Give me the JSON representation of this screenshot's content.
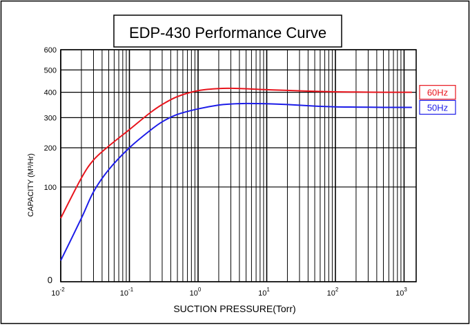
{
  "chart_data": {
    "type": "line",
    "title": "EDP-430 Performance Curve",
    "xlabel": "SUCTION PRESSURE(Torr)",
    "ylabel": "CAPACITY (M³/Hr)",
    "x_scale": "log",
    "xlim": [
      0.01,
      1500
    ],
    "ylim": [
      0,
      600
    ],
    "grid": true,
    "x_ticks": [
      {
        "base": "10",
        "exp": "-2"
      },
      {
        "base": "10",
        "exp": "-1"
      },
      {
        "base": "10",
        "exp": "0"
      },
      {
        "base": "10",
        "exp": "1"
      },
      {
        "base": "10",
        "exp": "2"
      },
      {
        "base": "10",
        "exp": "3"
      }
    ],
    "y_ticks": [
      "0",
      "100",
      "200",
      "300",
      "400",
      "500",
      "600"
    ],
    "series": [
      {
        "name": "60Hz",
        "color": "#e8141c",
        "x": [
          0.01,
          0.02,
          0.03,
          0.05,
          0.1,
          0.2,
          0.3,
          0.5,
          1,
          2,
          3,
          5,
          10,
          20,
          50,
          100,
          200,
          500,
          1000,
          1300
        ],
        "y": [
          45,
          120,
          165,
          205,
          258,
          318,
          350,
          382,
          407,
          416,
          417,
          415,
          411,
          408,
          404,
          402,
          401,
          400,
          400,
          400
        ]
      },
      {
        "name": "50Hz",
        "color": "#1c1ce8",
        "x": [
          0.01,
          0.02,
          0.03,
          0.05,
          0.1,
          0.2,
          0.3,
          0.5,
          1,
          2,
          3,
          5,
          10,
          20,
          50,
          100,
          200,
          500,
          1000,
          1300
        ],
        "y": [
          5,
          45,
          90,
          140,
          200,
          255,
          285,
          312,
          333,
          348,
          352,
          354,
          353,
          350,
          344,
          341,
          340,
          339,
          339,
          339
        ]
      }
    ]
  }
}
